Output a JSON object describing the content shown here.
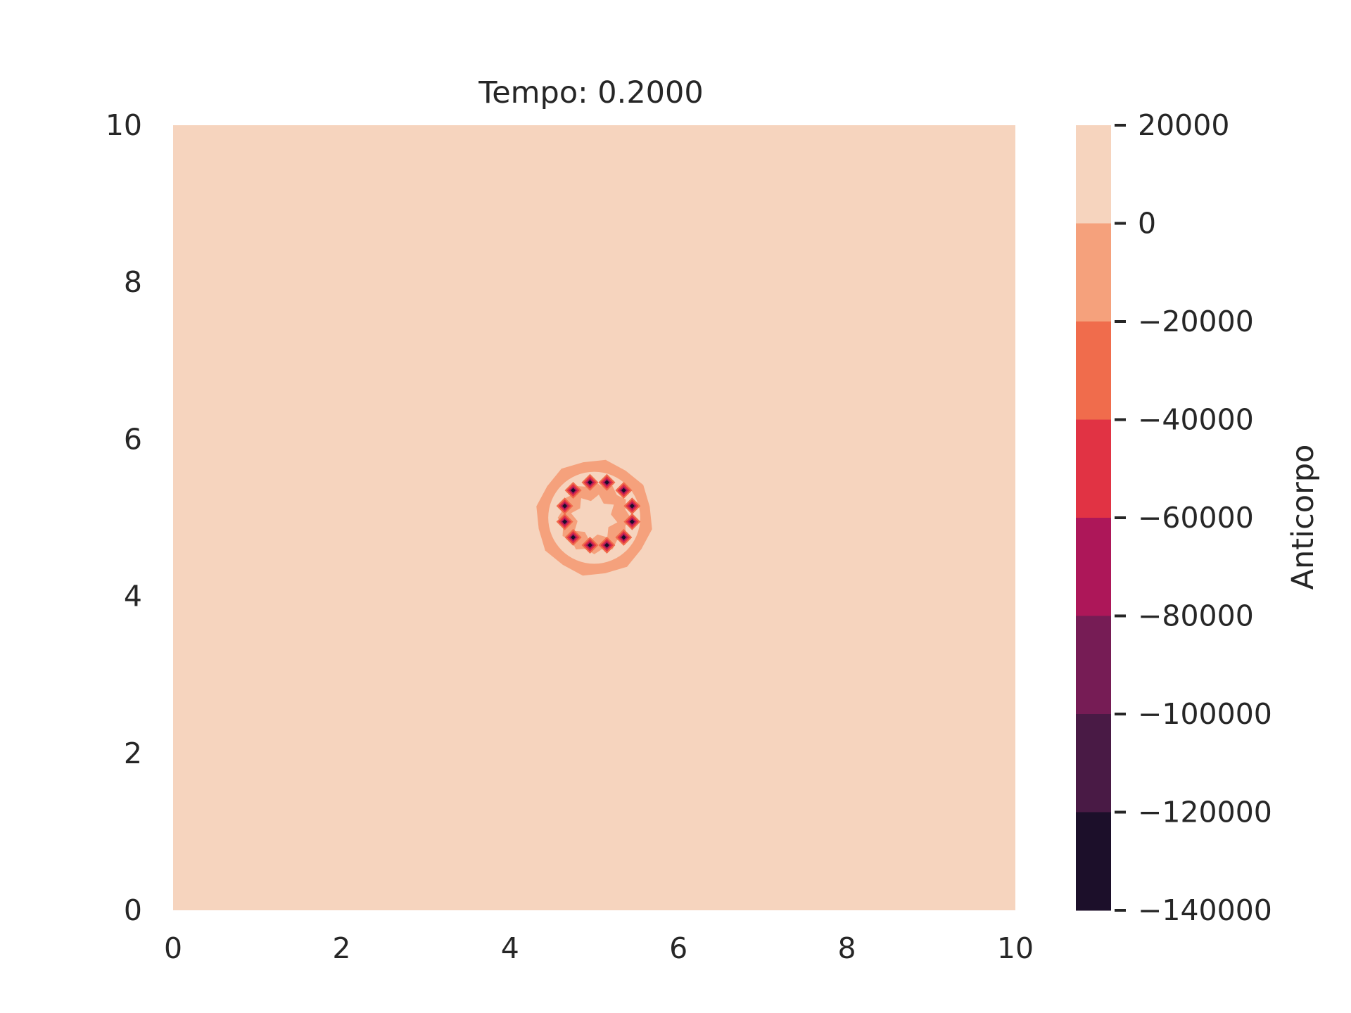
{
  "chart_data": {
    "type": "heatmap",
    "subtype": "filled-contour",
    "title": "Tempo: 0.2000",
    "xlabel": "",
    "ylabel": "",
    "xlim": [
      0,
      10
    ],
    "ylim": [
      0,
      10
    ],
    "x_ticks": [
      "0",
      "2",
      "4",
      "6",
      "8",
      "10"
    ],
    "y_ticks": [
      "0",
      "2",
      "4",
      "6",
      "8",
      "10"
    ],
    "grid": false,
    "background_level": "0 to 20000",
    "features": {
      "ring_center": [
        5.0,
        5.0
      ],
      "outer_ring_radius": 0.7,
      "dark_spots": [
        [
          4.95,
          5.45
        ],
        [
          5.15,
          5.45
        ],
        [
          4.75,
          5.35
        ],
        [
          5.35,
          5.35
        ],
        [
          4.65,
          5.15
        ],
        [
          5.45,
          5.15
        ],
        [
          4.65,
          4.95
        ],
        [
          5.45,
          4.95
        ],
        [
          4.75,
          4.75
        ],
        [
          5.35,
          4.75
        ],
        [
          4.95,
          4.65
        ],
        [
          5.15,
          4.65
        ]
      ],
      "dark_spot_min_value": -140000
    },
    "colorbar": {
      "label": "Anticorpo",
      "tick_labels": [
        "20000",
        "0",
        "−20000",
        "−40000",
        "−60000",
        "−80000",
        "−100000",
        "−120000",
        "−140000"
      ],
      "levels": [
        20000,
        0,
        -20000,
        -40000,
        -60000,
        -80000,
        -100000,
        -120000,
        -140000
      ],
      "colors": [
        "#f6d4be",
        "#f5a17c",
        "#f06c4c",
        "#e13344",
        "#ad1759",
        "#761c55",
        "#491a45",
        "#1c0f2a"
      ]
    }
  }
}
